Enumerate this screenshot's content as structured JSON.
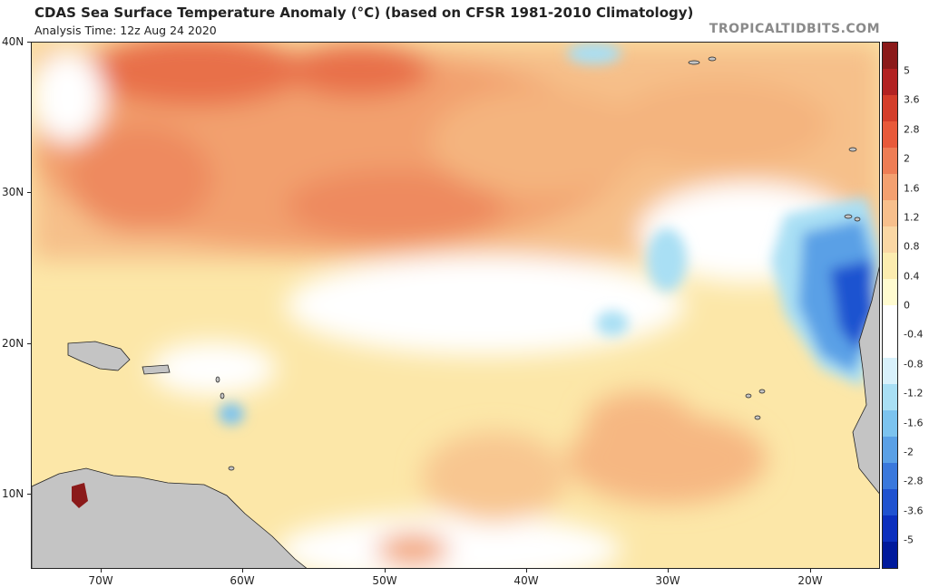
{
  "header": {
    "title": "CDAS Sea Surface Temperature Anomaly (°C) (based on CFSR 1981-2010 Climatology)",
    "subtitle": "Analysis Time: 12z Aug 24 2020",
    "credit": "TROPICALTIDBITS.COM"
  },
  "axes": {
    "lat_labels": [
      "40N",
      "30N",
      "20N",
      "10N"
    ],
    "lon_labels": [
      "70W",
      "60W",
      "50W",
      "40W",
      "30W",
      "20W"
    ]
  },
  "colorbar": {
    "labels": [
      "5",
      "3.6",
      "2.8",
      "2",
      "1.6",
      "1.2",
      "0.8",
      "0.4",
      "0",
      "-0.4",
      "-0.8",
      "-1.2",
      "-1.6",
      "-2",
      "-2.8",
      "-3.6",
      "-5"
    ],
    "colors": [
      "#8b1a1a",
      "#b22222",
      "#d43d2a",
      "#e8593a",
      "#ee7d55",
      "#f3a070",
      "#f7bf8c",
      "#fad7a4",
      "#fcecaf",
      "#fffbd0",
      "#ffffff",
      "#ffffff",
      "#d8f1fb",
      "#a9dff4",
      "#7cc3ef",
      "#5aa0e6",
      "#3a78dc",
      "#1f52d0",
      "#0b2fbe",
      "#001a9c"
    ]
  },
  "map": {
    "ocean_color": "#fad7a4",
    "land_color": "#c4c4c4"
  }
}
